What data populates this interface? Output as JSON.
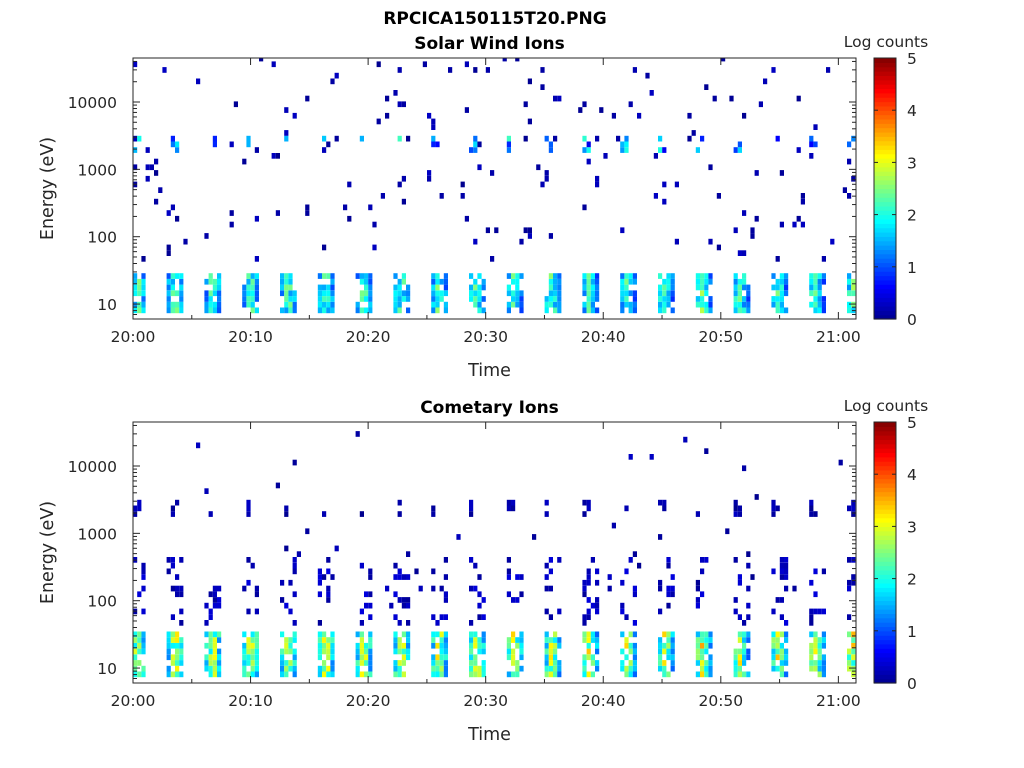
{
  "figure_title": "RPCICA150115T20.PNG",
  "colors": {
    "colormap": [
      "#00008f",
      "#0000ff",
      "#0080ff",
      "#00ffff",
      "#80ff80",
      "#ffff00",
      "#ff8000",
      "#ff0000",
      "#800000"
    ],
    "axis": "#262626"
  },
  "chart_data": [
    {
      "type": "heatmap",
      "title": "Solar Wind Ions",
      "xlabel": "Time",
      "ylabel": "Energy (eV)",
      "x_ticks": [
        "20:00",
        "20:10",
        "20:20",
        "20:30",
        "20:40",
        "20:50",
        "21:00"
      ],
      "y_ticks": [
        "10",
        "100",
        "1000",
        "10000"
      ],
      "y_scale": "log",
      "x_range_minutes": [
        0,
        61.5
      ],
      "y_range_eV": [
        6,
        45000
      ],
      "colorbar": {
        "label": "Log counts",
        "ticks": [
          "0",
          "1",
          "2",
          "3",
          "4",
          "5"
        ],
        "range": [
          0,
          5
        ]
      },
      "sweep_period_minutes": 3.2,
      "low_energy_band": {
        "energy_eV": [
          8,
          28
        ],
        "typical_log_counts": [
          0.5,
          2.6
        ]
      },
      "solar_wind_band": {
        "energy_eV": [
          1500,
          2600
        ],
        "typical_log_counts": [
          0.5,
          2.2
        ]
      },
      "background": "sparse single counts (log counts about 0 to 0.3) at 40 eV to 40000 eV"
    },
    {
      "type": "heatmap",
      "title": "Cometary Ions",
      "xlabel": "Time",
      "ylabel": "Energy (eV)",
      "x_ticks": [
        "20:00",
        "20:10",
        "20:20",
        "20:30",
        "20:40",
        "20:50",
        "21:00"
      ],
      "y_ticks": [
        "10",
        "100",
        "1000",
        "10000"
      ],
      "y_scale": "log",
      "x_range_minutes": [
        0,
        61.5
      ],
      "y_range_eV": [
        6,
        45000
      ],
      "colorbar": {
        "label": "Log counts",
        "ticks": [
          "0",
          "1",
          "2",
          "3",
          "4",
          "5"
        ],
        "range": [
          0,
          5
        ]
      },
      "sweep_period_minutes": 3.2,
      "low_energy_band": {
        "energy_eV": [
          8,
          30
        ],
        "typical_log_counts": [
          0.5,
          3.3
        ]
      },
      "mid_energy_tail": {
        "energy_eV": [
          40,
          400
        ],
        "typical_log_counts": [
          0,
          0.4
        ]
      },
      "solar_wind_band": {
        "energy_eV": [
          1500,
          2600
        ],
        "typical_log_counts": [
          0,
          0.3
        ]
      }
    }
  ]
}
